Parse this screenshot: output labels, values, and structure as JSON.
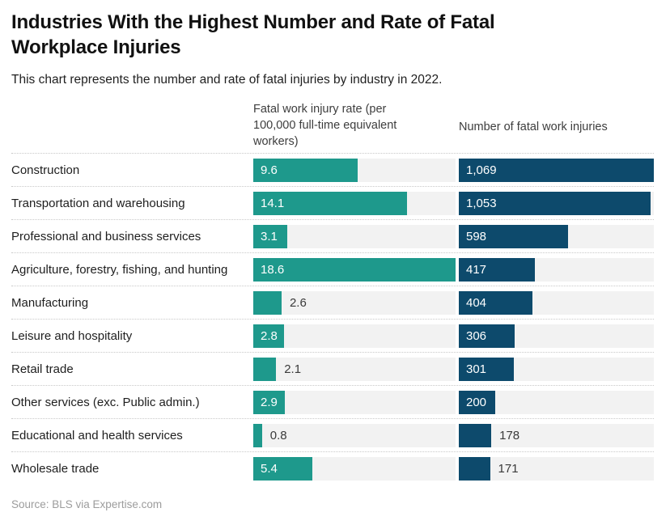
{
  "title": "Industries With the Highest Number and Rate of Fatal Workplace Injuries",
  "subtitle": "This chart represents the number and rate of fatal injuries by industry in 2022.",
  "source": "Source: BLS via Expertise.com",
  "colors": {
    "rate_bar": "#1e998c",
    "number_bar": "#0d4a6c",
    "bar_track": "#f2f2f2",
    "row_separator": "#c9c9c9",
    "value_inside_text": "#ffffff",
    "value_outside_text": "#3a3a3a"
  },
  "chart_data": {
    "type": "bar",
    "orientation": "horizontal",
    "title": "Industries With the Highest Number and Rate of Fatal Workplace Injuries",
    "subtitle": "This chart represents the number and rate of fatal injuries by industry in 2022.",
    "grid": false,
    "legend_position": "none",
    "headers": {
      "rate": "Fatal work injury rate (per 100,000 full-time equivalent workers)",
      "number": "Number of fatal work injuries"
    },
    "categories": [
      "Construction",
      "Transportation and warehousing",
      "Professional and business services",
      "Agriculture, forestry, fishing, and hunting",
      "Manufacturing",
      "Leisure and hospitality",
      "Retail trade",
      "Other services (exc. Public admin.)",
      "Educational and health services",
      "Wholesale trade"
    ],
    "series": [
      {
        "name": "Fatal work injury rate (per 100,000 full-time equivalent workers)",
        "values": [
          9.6,
          14.1,
          3.1,
          18.6,
          2.6,
          2.8,
          2.1,
          2.9,
          0.8,
          5.4
        ],
        "axis_max": 18.6
      },
      {
        "name": "Number of fatal work injuries",
        "values": [
          1069,
          1053,
          598,
          417,
          404,
          306,
          301,
          200,
          178,
          171
        ],
        "axis_max": 1069
      }
    ],
    "rows": [
      {
        "label": "Construction",
        "rate_display": "9.6",
        "rate_value": 9.6,
        "rate_label_inside": true,
        "number_display": "1,069",
        "number_value": 1069,
        "number_label_inside": true
      },
      {
        "label": "Transportation and warehousing",
        "rate_display": "14.1",
        "rate_value": 14.1,
        "rate_label_inside": true,
        "number_display": "1,053",
        "number_value": 1053,
        "number_label_inside": true
      },
      {
        "label": "Professional and business services",
        "rate_display": "3.1",
        "rate_value": 3.1,
        "rate_label_inside": true,
        "number_display": "598",
        "number_value": 598,
        "number_label_inside": true
      },
      {
        "label": "Agriculture, forestry, fishing, and hunting",
        "rate_display": "18.6",
        "rate_value": 18.6,
        "rate_label_inside": true,
        "number_display": "417",
        "number_value": 417,
        "number_label_inside": true
      },
      {
        "label": "Manufacturing",
        "rate_display": "2.6",
        "rate_value": 2.6,
        "rate_label_inside": false,
        "number_display": "404",
        "number_value": 404,
        "number_label_inside": true
      },
      {
        "label": "Leisure and hospitality",
        "rate_display": "2.8",
        "rate_value": 2.8,
        "rate_label_inside": true,
        "number_display": "306",
        "number_value": 306,
        "number_label_inside": true
      },
      {
        "label": "Retail trade",
        "rate_display": "2.1",
        "rate_value": 2.1,
        "rate_label_inside": false,
        "number_display": "301",
        "number_value": 301,
        "number_label_inside": true
      },
      {
        "label": "Other services (exc. Public admin.)",
        "rate_display": "2.9",
        "rate_value": 2.9,
        "rate_label_inside": true,
        "number_display": "200",
        "number_value": 200,
        "number_label_inside": true
      },
      {
        "label": "Educational and health services",
        "rate_display": "0.8",
        "rate_value": 0.8,
        "rate_label_inside": false,
        "number_display": "178",
        "number_value": 178,
        "number_label_inside": false
      },
      {
        "label": "Wholesale trade",
        "rate_display": "5.4",
        "rate_value": 5.4,
        "rate_label_inside": true,
        "number_display": "171",
        "number_value": 171,
        "number_label_inside": false
      }
    ]
  }
}
